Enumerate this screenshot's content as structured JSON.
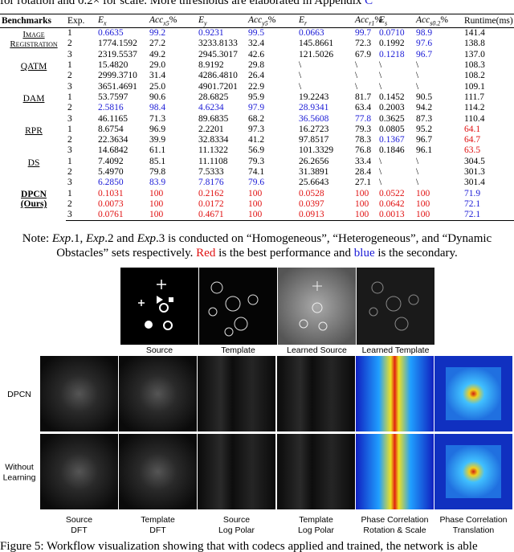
{
  "intro": "for rotation and 0.2× for scale. More thresholds are elaborated in Appendix",
  "intro_link": "C",
  "table": {
    "header": [
      "Benchmarks",
      "Exp.",
      {
        "base": "E",
        "sub": "x"
      },
      {
        "base": "Acc",
        "sub": "x5",
        "suffix": "%"
      },
      {
        "base": "E",
        "sub": "y"
      },
      {
        "base": "Acc",
        "sub": "y5",
        "suffix": "%"
      },
      {
        "base": "E",
        "sub": "r"
      },
      {
        "base": "Acc",
        "sub": "r1",
        "suffix": "%"
      },
      {
        "base": "E",
        "sub": "s"
      },
      {
        "base": "Acc",
        "sub": "s0.2",
        "suffix": "%"
      },
      "Runtime(ms)"
    ],
    "groups": [
      {
        "lines": [
          "Image",
          "Registration"
        ],
        "style": "smallcaps",
        "rows": [
          {
            "exp": "1",
            "cells": [
              "0.6635",
              "99.2",
              "0.9231",
              "99.5",
              "0.0663",
              "99.7",
              "0.0710",
              "98.9",
              "141.4"
            ],
            "blue": [
              0,
              1,
              2,
              3,
              4,
              5,
              6,
              7
            ]
          },
          {
            "exp": "2",
            "cells": [
              "1774.1592",
              "27.2",
              "3233.8133",
              "32.4",
              "145.8661",
              "72.3",
              "0.1992",
              "97.6",
              "138.8"
            ],
            "blue": [
              7
            ]
          },
          {
            "exp": "3",
            "cells": [
              "2319.5537",
              "49.2",
              "2945.3017",
              "42.6",
              "121.5026",
              "67.9",
              "0.1218",
              "96.7",
              "137.0"
            ],
            "blue": [
              6,
              7
            ]
          }
        ]
      },
      {
        "lines": [
          "QATM"
        ],
        "style": "plain",
        "rows": [
          {
            "exp": "1",
            "cells": [
              "15.4820",
              "29.0",
              "8.9192",
              "29.8",
              "\\",
              "\\",
              "\\",
              "\\",
              "108.3"
            ]
          },
          {
            "exp": "2",
            "cells": [
              "2999.3710",
              "31.4",
              "4286.4810",
              "26.4",
              "\\",
              "\\",
              "\\",
              "\\",
              "108.2"
            ]
          },
          {
            "exp": "3",
            "cells": [
              "3651.4691",
              "25.0",
              "4901.7201",
              "22.9",
              "\\",
              "\\",
              "\\",
              "\\",
              "109.1"
            ]
          }
        ]
      },
      {
        "lines": [
          "DAM"
        ],
        "style": "plain",
        "rows": [
          {
            "exp": "1",
            "cells": [
              "53.7597",
              "90.6",
              "28.6825",
              "95.9",
              "19.2243",
              "81.7",
              "0.1452",
              "90.5",
              "111.7"
            ]
          },
          {
            "exp": "2",
            "cells": [
              "2.5816",
              "98.4",
              "4.6234",
              "97.9",
              "28.9341",
              "63.4",
              "0.2003",
              "94.2",
              "114.2"
            ],
            "blue": [
              0,
              1,
              2,
              3,
              4
            ]
          },
          {
            "exp": "3",
            "cells": [
              "46.1165",
              "71.3",
              "89.6835",
              "68.2",
              "36.5608",
              "77.8",
              "0.3625",
              "87.3",
              "110.4"
            ],
            "blue": [
              4,
              5
            ]
          }
        ]
      },
      {
        "lines": [
          "RPR"
        ],
        "style": "plain",
        "rows": [
          {
            "exp": "1",
            "cells": [
              "8.6754",
              "96.9",
              "2.2201",
              "97.3",
              "16.2723",
              "79.3",
              "0.0805",
              "95.2",
              "64.1"
            ],
            "red": [
              8
            ]
          },
          {
            "exp": "2",
            "cells": [
              "22.3634",
              "39.9",
              "32.8334",
              "41.2",
              "97.8517",
              "78.3",
              "0.1367",
              "96.7",
              "64.7"
            ],
            "red": [
              8
            ],
            "blue": [
              6
            ]
          },
          {
            "exp": "3",
            "cells": [
              "14.6842",
              "61.1",
              "11.1322",
              "56.9",
              "101.3329",
              "76.8",
              "0.1846",
              "96.1",
              "63.5"
            ],
            "red": [
              8
            ]
          }
        ]
      },
      {
        "lines": [
          "DS"
        ],
        "style": "plain",
        "rows": [
          {
            "exp": "1",
            "cells": [
              "7.4092",
              "85.1",
              "11.1108",
              "79.3",
              "26.2656",
              "33.4",
              "\\",
              "\\",
              "304.5"
            ]
          },
          {
            "exp": "2",
            "cells": [
              "5.4970",
              "79.8",
              "7.5333",
              "74.1",
              "31.3891",
              "28.4",
              "\\",
              "\\",
              "301.3"
            ]
          },
          {
            "exp": "3",
            "cells": [
              "6.2850",
              "83.9",
              "7.8176",
              "79.6",
              "25.6643",
              "27.1",
              "\\",
              "\\",
              "301.4"
            ],
            "blue": [
              0,
              1,
              2,
              3
            ]
          }
        ]
      },
      {
        "lines": [
          "DPCN",
          "(Ours)"
        ],
        "style": "bold",
        "rows": [
          {
            "exp": "1",
            "cells": [
              "0.1031",
              "100",
              "0.2162",
              "100",
              "0.0528",
              "100",
              "0.0522",
              "100",
              "71.9"
            ],
            "red": [
              0,
              1,
              2,
              3,
              4,
              5,
              6,
              7
            ],
            "blue": [
              8
            ]
          },
          {
            "exp": "2",
            "cells": [
              "0.0073",
              "100",
              "0.0172",
              "100",
              "0.0397",
              "100",
              "0.0642",
              "100",
              "72.1"
            ],
            "red": [
              0,
              1,
              2,
              3,
              4,
              5,
              6,
              7
            ],
            "blue": [
              8
            ]
          },
          {
            "exp": "3",
            "cells": [
              "0.0761",
              "100",
              "0.4671",
              "100",
              "0.0913",
              "100",
              "0.0013",
              "100",
              "72.1"
            ],
            "red": [
              0,
              1,
              2,
              3,
              4,
              5,
              6,
              7
            ],
            "blue": [
              8
            ]
          }
        ]
      }
    ]
  },
  "note": [
    {
      "text": "Note: ",
      "style": "plain"
    },
    {
      "text": "Exp",
      "style": "math"
    },
    {
      "text": ".1, ",
      "style": "plain"
    },
    {
      "text": "Exp",
      "style": "math"
    },
    {
      "text": ".2 and ",
      "style": "plain"
    },
    {
      "text": "Exp",
      "style": "math"
    },
    {
      "text": ".3 is conducted on “Homogeneous”, “Heterogeneous”, and “Dynamic Obstacles” sets respectively. ",
      "style": "plain"
    },
    {
      "text": "Red",
      "style": "red"
    },
    {
      "text": " is the best performance and ",
      "style": "plain"
    },
    {
      "text": "blue",
      "style": "blue"
    },
    {
      "text": " is the secondary.",
      "style": "plain"
    }
  ],
  "figure": {
    "top_labels": [
      "Source",
      "Template",
      "Learned Source",
      "Learned Template"
    ],
    "row_labels": [
      [
        "DPCN"
      ],
      [
        "Without",
        "Learning"
      ]
    ],
    "bottom_labels": [
      [
        "Source",
        "DFT"
      ],
      [
        "Template",
        "DFT"
      ],
      [
        "Source",
        "Log Polar"
      ],
      [
        "Template",
        "Log Polar"
      ],
      [
        "Phase Correlation",
        "Rotation & Scale"
      ],
      [
        "Phase Correlation",
        "Translation"
      ]
    ]
  },
  "caption": "Figure 5: Workflow visualization showing that with codecs applied and trained, the network is able"
}
